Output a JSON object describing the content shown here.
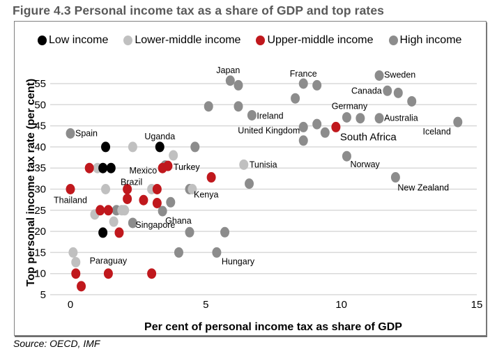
{
  "figure": {
    "title": "Figure 4.3 Personal income tax as a share of GDP and top rates",
    "source": "Source: OECD, IMF"
  },
  "chart_data": {
    "type": "scatter",
    "title": "Figure 4.3 Personal income tax as a share of GDP and top rates",
    "xlabel": "Per cent of personal income tax as share of GDP",
    "ylabel": "Top personal income tax rate (per cent)",
    "xlim": [
      0,
      15
    ],
    "ylim": [
      5,
      55
    ],
    "x_ticks": [
      "0",
      "5",
      "10",
      "15"
    ],
    "x_tick_values": [
      0,
      5,
      10,
      15
    ],
    "y_ticks": [
      "5",
      "10",
      "15",
      "20",
      "25",
      "30",
      "35",
      "40",
      "45",
      "50",
      "55"
    ],
    "y_tick_values": [
      5,
      10,
      15,
      20,
      25,
      30,
      35,
      40,
      45,
      50,
      55
    ],
    "grid": "horizontal",
    "legend_position": "top",
    "series": [
      {
        "name": "Low income",
        "color": "#000000",
        "points": [
          {
            "x": 1.3,
            "y": 40
          },
          {
            "x": 3.3,
            "y": 40,
            "label": "Uganda"
          },
          {
            "x": 1.2,
            "y": 35
          },
          {
            "x": 1.5,
            "y": 35
          },
          {
            "x": 1.2,
            "y": 19.7
          }
        ]
      },
      {
        "name": "Lower-middle income",
        "color": "#c0c0c0",
        "points": [
          {
            "x": 2.3,
            "y": 40
          },
          {
            "x": 3.8,
            "y": 38
          },
          {
            "x": 1.0,
            "y": 35
          },
          {
            "x": 1.3,
            "y": 30
          },
          {
            "x": 3.0,
            "y": 30
          },
          {
            "x": 4.5,
            "y": 30
          },
          {
            "x": 1.9,
            "y": 25
          },
          {
            "x": 2.0,
            "y": 25
          },
          {
            "x": 0.9,
            "y": 24
          },
          {
            "x": 1.6,
            "y": 22.3
          },
          {
            "x": 0.1,
            "y": 15
          },
          {
            "x": 0.2,
            "y": 12.7
          },
          {
            "x": 6.4,
            "y": 35.8,
            "label": "Tunisia"
          }
        ]
      },
      {
        "name": "Upper-middle income",
        "color": "#c0181d",
        "points": [
          {
            "x": 0.7,
            "y": 35
          },
          {
            "x": 3.4,
            "y": 35,
            "label": "Mexico"
          },
          {
            "x": 3.6,
            "y": 35.5,
            "label": "Turkey"
          },
          {
            "x": 0.0,
            "y": 30,
            "label": "Thailand"
          },
          {
            "x": 2.1,
            "y": 30,
            "label": "Brazil"
          },
          {
            "x": 3.2,
            "y": 30
          },
          {
            "x": 2.1,
            "y": 27.7
          },
          {
            "x": 2.7,
            "y": 27.4
          },
          {
            "x": 3.2,
            "y": 26.7
          },
          {
            "x": 1.1,
            "y": 25
          },
          {
            "x": 1.4,
            "y": 25
          },
          {
            "x": 1.8,
            "y": 19.7
          },
          {
            "x": 5.2,
            "y": 32.8
          },
          {
            "x": 0.2,
            "y": 10
          },
          {
            "x": 1.4,
            "y": 10,
            "label": "Paraguay"
          },
          {
            "x": 3.0,
            "y": 10
          },
          {
            "x": 0.4,
            "y": 7
          },
          {
            "x": 9.8,
            "y": 44.7,
            "label": "South Africa"
          }
        ]
      },
      {
        "name": "High income",
        "color": "#8c8c8c",
        "points": [
          {
            "x": 0.0,
            "y": 43.2,
            "label": "Spain"
          },
          {
            "x": 4.6,
            "y": 40
          },
          {
            "x": 3.5,
            "y": 35.6
          },
          {
            "x": 4.4,
            "y": 30,
            "label": "Kenya"
          },
          {
            "x": 3.7,
            "y": 26.9
          },
          {
            "x": 3.4,
            "y": 24.8,
            "label": "Ghana"
          },
          {
            "x": 1.7,
            "y": 25
          },
          {
            "x": 2.3,
            "y": 22,
            "label": "Singapore"
          },
          {
            "x": 4.4,
            "y": 19.8
          },
          {
            "x": 5.7,
            "y": 19.8
          },
          {
            "x": 4.0,
            "y": 15
          },
          {
            "x": 5.4,
            "y": 15,
            "label": "Hungary"
          },
          {
            "x": 6.6,
            "y": 31.3
          },
          {
            "x": 5.9,
            "y": 55.7,
            "label": "Japan"
          },
          {
            "x": 6.2,
            "y": 54.6
          },
          {
            "x": 5.1,
            "y": 49.6
          },
          {
            "x": 6.2,
            "y": 49.6
          },
          {
            "x": 6.7,
            "y": 47.5,
            "label": "Ireland"
          },
          {
            "x": 8.6,
            "y": 55,
            "label": "France"
          },
          {
            "x": 9.1,
            "y": 54.6
          },
          {
            "x": 8.3,
            "y": 51.5
          },
          {
            "x": 8.6,
            "y": 44.7,
            "label": "United Kingdom"
          },
          {
            "x": 8.6,
            "y": 41.5
          },
          {
            "x": 9.1,
            "y": 45.4
          },
          {
            "x": 9.4,
            "y": 43.4
          },
          {
            "x": 10.2,
            "y": 47,
            "label": "Germany"
          },
          {
            "x": 10.7,
            "y": 46.8
          },
          {
            "x": 11.4,
            "y": 46.8,
            "label": "Australia"
          },
          {
            "x": 11.4,
            "y": 56.9,
            "label": "Sweden"
          },
          {
            "x": 11.7,
            "y": 53.3,
            "label": "Canada"
          },
          {
            "x": 12.1,
            "y": 52.8
          },
          {
            "x": 12.6,
            "y": 50.8
          },
          {
            "x": 14.3,
            "y": 45.9,
            "label": "Iceland"
          },
          {
            "x": 10.2,
            "y": 37.8,
            "label": "Norway"
          },
          {
            "x": 12.0,
            "y": 32.8,
            "label": "New Zealand"
          }
        ]
      }
    ]
  }
}
